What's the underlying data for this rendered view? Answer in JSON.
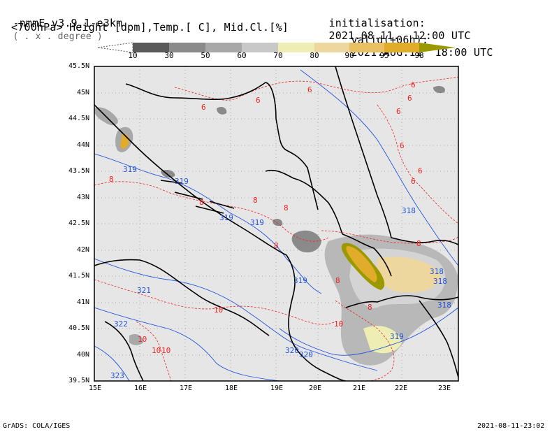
{
  "header": {
    "model": "-nmmE_v3.9.1-e3km",
    "projection": "( . x . degree )",
    "fields": "<700hPa> Height [dpm],Temp.[ C], Mid.Cl.[%]",
    "init_label": "initialisation:",
    "init_value": "2021.08.11.  12:00 UTC",
    "valid_label": "valid(+06h):",
    "valid_value": "2021.AUG.11  18:00 UTC"
  },
  "colorbar": {
    "levels": [
      "10",
      "30",
      "50",
      "60",
      "70",
      "80",
      "90",
      "95",
      "98"
    ],
    "colors": [
      "#5a5a5a",
      "#8a8a8a",
      "#a8a8a8",
      "#c8c8c8",
      "#eeeeb4",
      "#eed79e",
      "#e9c062",
      "#e0ac2a",
      "#9a9a00"
    ]
  },
  "axes": {
    "lon_labels": [
      "15E",
      "16E",
      "17E",
      "18E",
      "19E",
      "20E",
      "21E",
      "22E",
      "23E"
    ],
    "lat_labels": [
      "45.5N",
      "45N",
      "44.5N",
      "44N",
      "43.5N",
      "43N",
      "42.5N",
      "42N",
      "41.5N",
      "41N",
      "40.5N",
      "40N",
      "39.5N"
    ]
  },
  "contours": {
    "height_labels": [
      "319",
      "319",
      "319",
      "319",
      "319",
      "318",
      "318",
      "318",
      "318",
      "321",
      "322",
      "323",
      "320",
      "320",
      "319"
    ],
    "temp_labels": [
      "6",
      "6",
      "6",
      "6",
      "6",
      "6",
      "6",
      "6",
      "6",
      "8",
      "8",
      "8",
      "8",
      "8",
      "8",
      "8",
      "8",
      "10",
      "10",
      "10",
      "10",
      "10"
    ]
  },
  "style": {
    "sea_color": "#e6e6e6",
    "height_contour_color": "#2255dd",
    "temp_contour_color": "#ee2222",
    "border_color": "#000000"
  },
  "footer": {
    "left": "GrADS: COLA/IGES",
    "right": "2021-08-11-23:02"
  }
}
